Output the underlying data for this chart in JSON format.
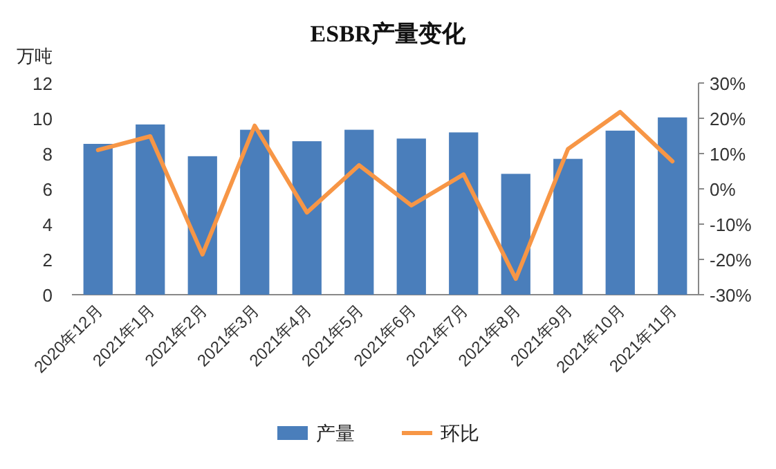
{
  "chart_data": {
    "type": "bar",
    "title": "ESBR产量变化",
    "ylabel": "万吨",
    "categories": [
      "2020年12月",
      "2021年1月",
      "2021年2月",
      "2021年3月",
      "2021年4月",
      "2021年5月",
      "2021年6月",
      "2021年7月",
      "2021年8月",
      "2021年9月",
      "2021年10月",
      "2021年11月"
    ],
    "series": [
      {
        "name": "产量",
        "color": "#4a7ebb",
        "values": [
          8.55,
          9.65,
          7.85,
          9.35,
          8.7,
          9.35,
          8.85,
          9.2,
          6.85,
          7.7,
          9.3,
          10.05
        ]
      },
      {
        "name": "环比",
        "type": "line",
        "axis": "y2",
        "color": "#f79646",
        "values": [
          11,
          14.9,
          -18.6,
          17.9,
          -6.7,
          6.7,
          -4.7,
          4.1,
          -25.5,
          11.3,
          21.8,
          7.8
        ]
      }
    ],
    "ylim": [
      0,
      12
    ],
    "yticks": [
      0,
      2,
      4,
      6,
      8,
      10,
      12
    ],
    "y2lim": [
      -30,
      30
    ],
    "y2ticks": [
      {
        "value": 30,
        "label": "30%"
      },
      {
        "value": 20,
        "label": "20%"
      },
      {
        "value": 10,
        "label": "10%"
      },
      {
        "value": 0,
        "label": "0%"
      },
      {
        "value": -10,
        "label": "-10%"
      },
      {
        "value": -20,
        "label": "-20%"
      },
      {
        "value": -30,
        "label": "-30%"
      }
    ],
    "legend": "bottom"
  }
}
